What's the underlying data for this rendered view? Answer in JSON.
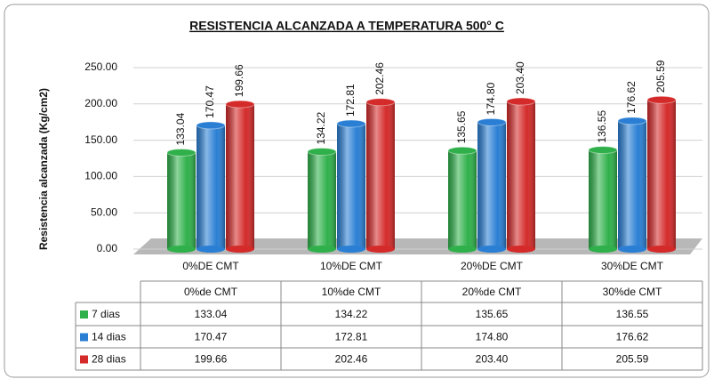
{
  "chart_data": {
    "type": "bar",
    "title": "RESISTENCIA ALCANZADA A TEMPERATURA 500° C",
    "y_axis_label": "Resistencia alcanzada (Kg/cm2)",
    "categories": [
      "0%DE CMT",
      "10%DE CMT",
      "20%DE CMT",
      "30%DE CMT"
    ],
    "table_categories": [
      "0%de CMT",
      "10%de CMT",
      "20%de CMT",
      "30%de CMT"
    ],
    "series": [
      {
        "name": "7 dias",
        "color": "#2fb04a",
        "values": [
          133.04,
          134.22,
          135.65,
          136.55
        ],
        "value_labels": [
          "133.04",
          "134.22",
          "135.65",
          "136.55"
        ]
      },
      {
        "name": "14 dias",
        "color": "#2a7fd4",
        "values": [
          170.47,
          172.81,
          174.8,
          176.62
        ],
        "value_labels": [
          "170.47",
          "172.81",
          "174.80",
          "176.62"
        ]
      },
      {
        "name": "28 dias",
        "color": "#d42a2a",
        "values": [
          199.66,
          202.46,
          203.4,
          205.59
        ],
        "value_labels": [
          "199.66",
          "202.46",
          "203.40",
          "205.59"
        ]
      }
    ],
    "ylim": [
      0,
      250
    ],
    "yticks": [
      {
        "value": 0,
        "label": "0.00"
      },
      {
        "value": 50,
        "label": "50.00"
      },
      {
        "value": 100,
        "label": "100.00"
      },
      {
        "value": 150,
        "label": "150.00"
      },
      {
        "value": 200,
        "label": "200.00"
      },
      {
        "value": 250,
        "label": "250.00"
      }
    ],
    "grid": true
  }
}
